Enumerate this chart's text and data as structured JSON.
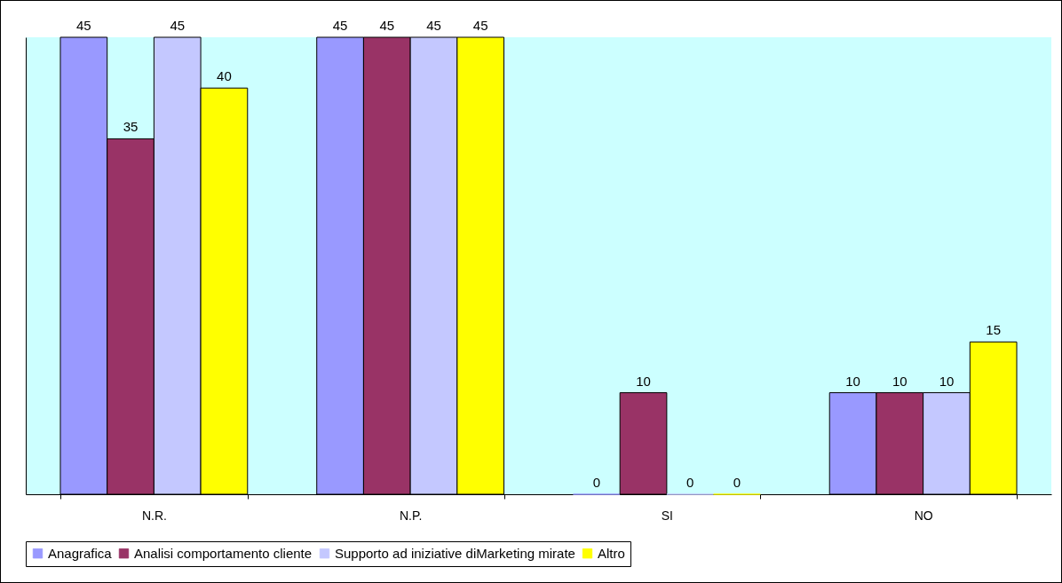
{
  "chart_data": {
    "type": "bar",
    "categories": [
      "N.R.",
      "N.P.",
      "SI",
      "NO"
    ],
    "series": [
      {
        "name": "Anagrafica",
        "color": "#9999ff",
        "values": [
          45,
          45,
          0,
          10
        ]
      },
      {
        "name": "Analisi comportamento cliente",
        "color": "#993366",
        "values": [
          35,
          45,
          10,
          10
        ]
      },
      {
        "name": "Supporto ad iniziative diMarketing mirate",
        "color": "#c4c8ff",
        "values": [
          45,
          45,
          0,
          10
        ]
      },
      {
        "name": "Altro",
        "color": "#ffff00",
        "values": [
          40,
          45,
          0,
          15
        ]
      }
    ],
    "data_labels": true,
    "legend": "bottom",
    "grid": false,
    "tick_labels": "x"
  }
}
